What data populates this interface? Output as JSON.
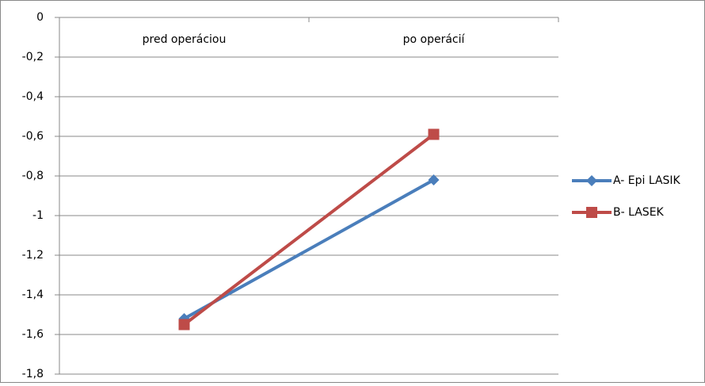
{
  "chart_data": {
    "type": "line",
    "categories": [
      "pred operáciou",
      "po operácií"
    ],
    "series": [
      {
        "name": "A- Epi LASIK",
        "color": "#4a7ebb",
        "marker": "diamond",
        "values": [
          -1.52,
          -0.82
        ]
      },
      {
        "name": "B- LASEK",
        "color": "#be4b48",
        "marker": "square",
        "values": [
          -1.55,
          -0.59
        ]
      }
    ],
    "ylim": [
      -1.8,
      0
    ],
    "yticks": [
      0,
      {
        "value": -0.2,
        "label": "-0,2"
      },
      {
        "value": -0.4,
        "label": "-0,4"
      },
      {
        "value": -0.6,
        "label": "-0,6"
      },
      {
        "value": -0.8,
        "label": "-0,8"
      },
      -1,
      {
        "value": -1.2,
        "label": "-1,2"
      },
      {
        "value": -1.4,
        "label": "-1,4"
      },
      {
        "value": -1.6,
        "label": "-1,6"
      },
      {
        "value": -1.8,
        "label": "-1,8"
      }
    ],
    "grid": true,
    "legend": "right"
  }
}
